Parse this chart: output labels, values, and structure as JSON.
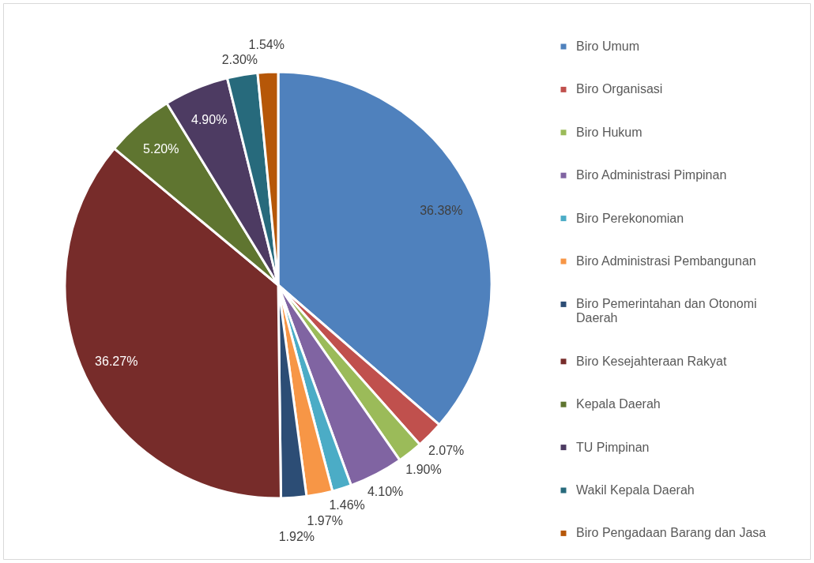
{
  "chart_data": {
    "type": "pie",
    "categories": [
      "Biro Umum",
      "Biro Organisasi",
      "Biro Hukum",
      "Biro Administrasi Pimpinan",
      "Biro Perekonomian",
      "Biro Administrasi Pembangunan",
      "Biro Pemerintahan dan Otonomi Daerah",
      "Biro Kesejahteraan Rakyat",
      "Kepala Daerah",
      "TU Pimpinan",
      "Wakil Kepala Daerah",
      "Biro Pengadaan Barang dan Jasa"
    ],
    "values": [
      36.38,
      2.07,
      1.9,
      4.1,
      1.46,
      1.97,
      1.92,
      36.27,
      5.2,
      4.9,
      2.3,
      1.54
    ],
    "colors": [
      "#4f81bd",
      "#c0504d",
      "#9bbb59",
      "#8064a2",
      "#4bacc6",
      "#f79646",
      "#2c4d75",
      "#772c2a",
      "#5f7530",
      "#4d3b62",
      "#276a7c",
      "#b65708"
    ],
    "value_labels": [
      "36.38%",
      "2.07%",
      "1.90%",
      "4.10%",
      "1.46%",
      "1.97%",
      "1.92%",
      "36.27%",
      "5.20%",
      "4.90%",
      "2.30%",
      "1.54%"
    ],
    "legend": "right"
  }
}
